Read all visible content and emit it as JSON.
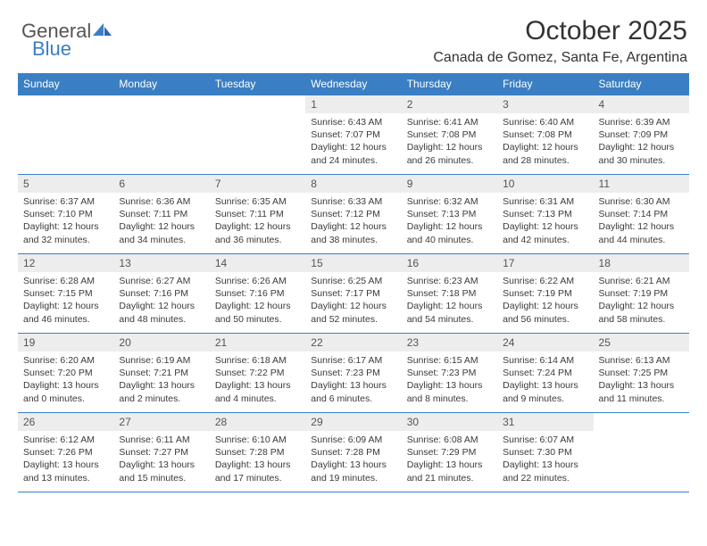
{
  "brand": {
    "part1": "General",
    "part2": "Blue"
  },
  "title": "October 2025",
  "location": "Canada de Gomez, Santa Fe, Argentina",
  "colors": {
    "accent": "#3a7fc4",
    "daynum_bg": "#ededed",
    "text": "#333333",
    "body_text": "#3a3a3a"
  },
  "dayNames": [
    "Sunday",
    "Monday",
    "Tuesday",
    "Wednesday",
    "Thursday",
    "Friday",
    "Saturday"
  ],
  "weeks": [
    [
      {
        "n": "",
        "sunrise": "",
        "sunset": "",
        "daylight": ""
      },
      {
        "n": "",
        "sunrise": "",
        "sunset": "",
        "daylight": ""
      },
      {
        "n": "",
        "sunrise": "",
        "sunset": "",
        "daylight": ""
      },
      {
        "n": "1",
        "sunrise": "Sunrise: 6:43 AM",
        "sunset": "Sunset: 7:07 PM",
        "daylight": "Daylight: 12 hours and 24 minutes."
      },
      {
        "n": "2",
        "sunrise": "Sunrise: 6:41 AM",
        "sunset": "Sunset: 7:08 PM",
        "daylight": "Daylight: 12 hours and 26 minutes."
      },
      {
        "n": "3",
        "sunrise": "Sunrise: 6:40 AM",
        "sunset": "Sunset: 7:08 PM",
        "daylight": "Daylight: 12 hours and 28 minutes."
      },
      {
        "n": "4",
        "sunrise": "Sunrise: 6:39 AM",
        "sunset": "Sunset: 7:09 PM",
        "daylight": "Daylight: 12 hours and 30 minutes."
      }
    ],
    [
      {
        "n": "5",
        "sunrise": "Sunrise: 6:37 AM",
        "sunset": "Sunset: 7:10 PM",
        "daylight": "Daylight: 12 hours and 32 minutes."
      },
      {
        "n": "6",
        "sunrise": "Sunrise: 6:36 AM",
        "sunset": "Sunset: 7:11 PM",
        "daylight": "Daylight: 12 hours and 34 minutes."
      },
      {
        "n": "7",
        "sunrise": "Sunrise: 6:35 AM",
        "sunset": "Sunset: 7:11 PM",
        "daylight": "Daylight: 12 hours and 36 minutes."
      },
      {
        "n": "8",
        "sunrise": "Sunrise: 6:33 AM",
        "sunset": "Sunset: 7:12 PM",
        "daylight": "Daylight: 12 hours and 38 minutes."
      },
      {
        "n": "9",
        "sunrise": "Sunrise: 6:32 AM",
        "sunset": "Sunset: 7:13 PM",
        "daylight": "Daylight: 12 hours and 40 minutes."
      },
      {
        "n": "10",
        "sunrise": "Sunrise: 6:31 AM",
        "sunset": "Sunset: 7:13 PM",
        "daylight": "Daylight: 12 hours and 42 minutes."
      },
      {
        "n": "11",
        "sunrise": "Sunrise: 6:30 AM",
        "sunset": "Sunset: 7:14 PM",
        "daylight": "Daylight: 12 hours and 44 minutes."
      }
    ],
    [
      {
        "n": "12",
        "sunrise": "Sunrise: 6:28 AM",
        "sunset": "Sunset: 7:15 PM",
        "daylight": "Daylight: 12 hours and 46 minutes."
      },
      {
        "n": "13",
        "sunrise": "Sunrise: 6:27 AM",
        "sunset": "Sunset: 7:16 PM",
        "daylight": "Daylight: 12 hours and 48 minutes."
      },
      {
        "n": "14",
        "sunrise": "Sunrise: 6:26 AM",
        "sunset": "Sunset: 7:16 PM",
        "daylight": "Daylight: 12 hours and 50 minutes."
      },
      {
        "n": "15",
        "sunrise": "Sunrise: 6:25 AM",
        "sunset": "Sunset: 7:17 PM",
        "daylight": "Daylight: 12 hours and 52 minutes."
      },
      {
        "n": "16",
        "sunrise": "Sunrise: 6:23 AM",
        "sunset": "Sunset: 7:18 PM",
        "daylight": "Daylight: 12 hours and 54 minutes."
      },
      {
        "n": "17",
        "sunrise": "Sunrise: 6:22 AM",
        "sunset": "Sunset: 7:19 PM",
        "daylight": "Daylight: 12 hours and 56 minutes."
      },
      {
        "n": "18",
        "sunrise": "Sunrise: 6:21 AM",
        "sunset": "Sunset: 7:19 PM",
        "daylight": "Daylight: 12 hours and 58 minutes."
      }
    ],
    [
      {
        "n": "19",
        "sunrise": "Sunrise: 6:20 AM",
        "sunset": "Sunset: 7:20 PM",
        "daylight": "Daylight: 13 hours and 0 minutes."
      },
      {
        "n": "20",
        "sunrise": "Sunrise: 6:19 AM",
        "sunset": "Sunset: 7:21 PM",
        "daylight": "Daylight: 13 hours and 2 minutes."
      },
      {
        "n": "21",
        "sunrise": "Sunrise: 6:18 AM",
        "sunset": "Sunset: 7:22 PM",
        "daylight": "Daylight: 13 hours and 4 minutes."
      },
      {
        "n": "22",
        "sunrise": "Sunrise: 6:17 AM",
        "sunset": "Sunset: 7:23 PM",
        "daylight": "Daylight: 13 hours and 6 minutes."
      },
      {
        "n": "23",
        "sunrise": "Sunrise: 6:15 AM",
        "sunset": "Sunset: 7:23 PM",
        "daylight": "Daylight: 13 hours and 8 minutes."
      },
      {
        "n": "24",
        "sunrise": "Sunrise: 6:14 AM",
        "sunset": "Sunset: 7:24 PM",
        "daylight": "Daylight: 13 hours and 9 minutes."
      },
      {
        "n": "25",
        "sunrise": "Sunrise: 6:13 AM",
        "sunset": "Sunset: 7:25 PM",
        "daylight": "Daylight: 13 hours and 11 minutes."
      }
    ],
    [
      {
        "n": "26",
        "sunrise": "Sunrise: 6:12 AM",
        "sunset": "Sunset: 7:26 PM",
        "daylight": "Daylight: 13 hours and 13 minutes."
      },
      {
        "n": "27",
        "sunrise": "Sunrise: 6:11 AM",
        "sunset": "Sunset: 7:27 PM",
        "daylight": "Daylight: 13 hours and 15 minutes."
      },
      {
        "n": "28",
        "sunrise": "Sunrise: 6:10 AM",
        "sunset": "Sunset: 7:28 PM",
        "daylight": "Daylight: 13 hours and 17 minutes."
      },
      {
        "n": "29",
        "sunrise": "Sunrise: 6:09 AM",
        "sunset": "Sunset: 7:28 PM",
        "daylight": "Daylight: 13 hours and 19 minutes."
      },
      {
        "n": "30",
        "sunrise": "Sunrise: 6:08 AM",
        "sunset": "Sunset: 7:29 PM",
        "daylight": "Daylight: 13 hours and 21 minutes."
      },
      {
        "n": "31",
        "sunrise": "Sunrise: 6:07 AM",
        "sunset": "Sunset: 7:30 PM",
        "daylight": "Daylight: 13 hours and 22 minutes."
      },
      {
        "n": "",
        "sunrise": "",
        "sunset": "",
        "daylight": ""
      }
    ]
  ]
}
